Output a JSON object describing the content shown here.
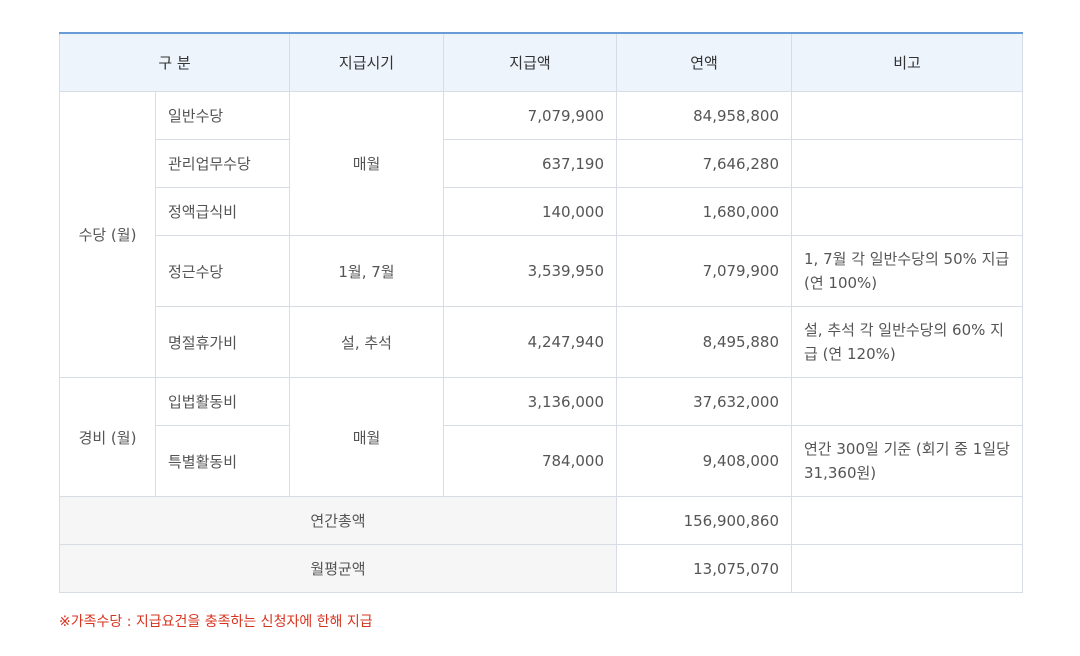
{
  "table": {
    "headers": [
      "구 분",
      "지급시기",
      "지급액",
      "연액",
      "비고"
    ],
    "group_allowance": "수당 (월)",
    "group_expense": "경비 (월)",
    "rows": [
      {
        "item": "일반수당",
        "timing": "매월",
        "amount": "7,079,900",
        "annual": "84,958,800",
        "note": ""
      },
      {
        "item": "관리업무수당",
        "timing": "",
        "amount": "637,190",
        "annual": "7,646,280",
        "note": ""
      },
      {
        "item": "정액급식비",
        "timing": "",
        "amount": "140,000",
        "annual": "1,680,000",
        "note": ""
      },
      {
        "item": "정근수당",
        "timing": "1월, 7월",
        "amount": "3,539,950",
        "annual": "7,079,900",
        "note": "1, 7월 각 일반수당의 50% 지급 (연 100%)"
      },
      {
        "item": "명절휴가비",
        "timing": "설, 추석",
        "amount": "4,247,940",
        "annual": "8,495,880",
        "note": "설, 추석 각 일반수당의 60% 지급 (연 120%)"
      },
      {
        "item": "입법활동비",
        "timing": "매월",
        "amount": "3,136,000",
        "annual": "37,632,000",
        "note": ""
      },
      {
        "item": "특별활동비",
        "timing": "",
        "amount": "784,000",
        "annual": "9,408,000",
        "note": "연간 300일 기준 (회기 중 1일당 31,360원)"
      }
    ],
    "total_annual_label": "연간총액",
    "total_annual_value": "156,900,860",
    "monthly_avg_label": "월평균액",
    "monthly_avg_value": "13,075,070"
  },
  "footnote": "※가족수당 : 지급요건을 충족하는 신청자에 한해 지급"
}
